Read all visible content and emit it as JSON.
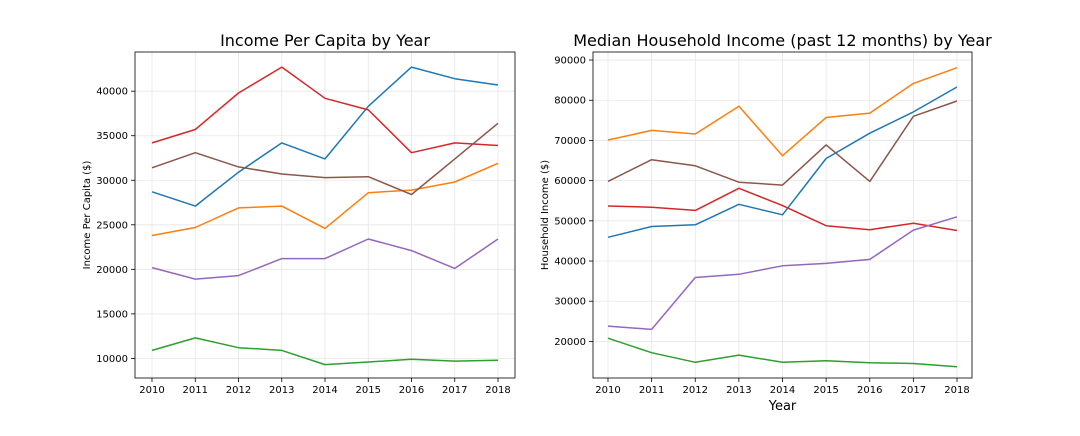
{
  "chart_data": [
    {
      "type": "line",
      "title": "Income Per Capita by Year",
      "xlabel": "",
      "ylabel": "Income Per Capita ($)",
      "x": [
        "2010",
        "2011",
        "2012",
        "2013",
        "2014",
        "2015",
        "2016",
        "2017",
        "2018"
      ],
      "ylim": [
        7800,
        44400
      ],
      "yticks": [
        10000,
        15000,
        20000,
        25000,
        30000,
        35000,
        40000
      ],
      "grid": true,
      "series": [
        {
          "color": "#1f77b4",
          "values": [
            28700,
            27100,
            30900,
            34200,
            32400,
            38300,
            42700,
            41400,
            40700
          ]
        },
        {
          "color": "#ff7f0e",
          "values": [
            23800,
            24700,
            26900,
            27100,
            24600,
            28600,
            28900,
            29800,
            31900
          ]
        },
        {
          "color": "#2ca02c",
          "values": [
            10900,
            12300,
            11200,
            10900,
            9300,
            9600,
            9900,
            9700,
            9800
          ]
        },
        {
          "color": "#d62728",
          "values": [
            34200,
            35700,
            39800,
            42700,
            39200,
            37900,
            33100,
            34200,
            33900
          ]
        },
        {
          "color": "#9467bd",
          "values": [
            20200,
            18900,
            19300,
            21200,
            21200,
            23400,
            22100,
            20100,
            23400
          ]
        },
        {
          "color": "#8c564b",
          "values": [
            31400,
            33100,
            31500,
            30700,
            30300,
            30400,
            28400,
            32400,
            36400
          ]
        }
      ]
    },
    {
      "type": "line",
      "title": "Median Household Income (past 12 months) by Year",
      "xlabel": "Year",
      "ylabel": "Household Income ($)",
      "x": [
        "2010",
        "2011",
        "2012",
        "2013",
        "2014",
        "2015",
        "2016",
        "2017",
        "2018"
      ],
      "ylim": [
        10900,
        92000
      ],
      "yticks": [
        20000,
        30000,
        40000,
        50000,
        60000,
        70000,
        80000,
        90000
      ],
      "grid": true,
      "series": [
        {
          "color": "#1f77b4",
          "values": [
            45900,
            48600,
            49000,
            54100,
            51500,
            65500,
            71800,
            77100,
            83300
          ]
        },
        {
          "color": "#ff7f0e",
          "values": [
            70100,
            72500,
            71600,
            78500,
            66200,
            75700,
            76800,
            84200,
            88100
          ]
        },
        {
          "color": "#2ca02c",
          "values": [
            20800,
            17200,
            14800,
            16600,
            14800,
            15200,
            14700,
            14500,
            13700
          ]
        },
        {
          "color": "#d62728",
          "values": [
            53700,
            53400,
            52600,
            58100,
            53800,
            48800,
            47800,
            49400,
            47600
          ]
        },
        {
          "color": "#9467bd",
          "values": [
            23800,
            23000,
            35900,
            36700,
            38800,
            39400,
            40400,
            47700,
            51000
          ]
        },
        {
          "color": "#8c564b",
          "values": [
            59800,
            65200,
            63700,
            59600,
            58900,
            68900,
            59800,
            76000,
            79800
          ]
        }
      ]
    }
  ]
}
